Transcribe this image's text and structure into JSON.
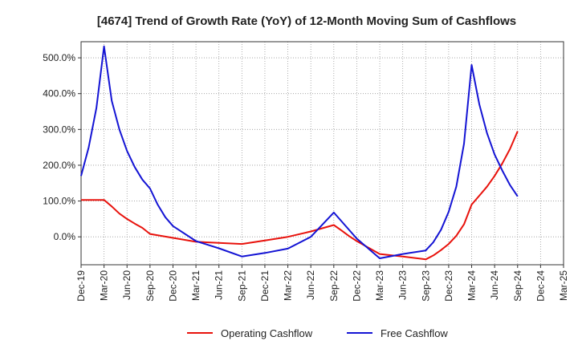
{
  "chart_data": {
    "type": "line",
    "title": "[4674]  Trend of Growth Rate (YoY) of 12-Month Moving Sum of Cashflows",
    "xlabel": "",
    "ylabel": "",
    "x_tick_labels": [
      "Dec-19",
      "Mar-20",
      "Jun-20",
      "Sep-20",
      "Dec-20",
      "Mar-21",
      "Jun-21",
      "Sep-21",
      "Dec-21",
      "Mar-22",
      "Jun-22",
      "Sep-22",
      "Dec-22",
      "Mar-23",
      "Jun-23",
      "Sep-23",
      "Dec-23",
      "Mar-24",
      "Jun-24",
      "Sep-24",
      "Dec-24",
      "Mar-25"
    ],
    "y_ticks": [
      0,
      100,
      200,
      300,
      400,
      500
    ],
    "y_tick_labels": [
      "0.0%",
      "100.0%",
      "200.0%",
      "300.0%",
      "400.0%",
      "500.0%"
    ],
    "ylim": [
      -78,
      545
    ],
    "grid": true,
    "legend_position": "bottom-center",
    "colors": {
      "Operating Cashflow": "#e8120c",
      "Free Cashflow": "#1414d4"
    },
    "series": [
      {
        "name": "Operating Cashflow",
        "points": [
          [
            "Dec-19",
            103
          ],
          [
            "Jan-20",
            103
          ],
          [
            "Feb-20",
            103
          ],
          [
            "Mar-20",
            103
          ],
          [
            "Apr-20",
            85
          ],
          [
            "May-20",
            65
          ],
          [
            "Jun-20",
            50
          ],
          [
            "Jul-20",
            37
          ],
          [
            "Aug-20",
            25
          ],
          [
            "Sep-20",
            8
          ],
          [
            "Dec-20",
            -3
          ],
          [
            "Mar-21",
            -14
          ],
          [
            "Jun-21",
            -17
          ],
          [
            "Sep-21",
            -20
          ],
          [
            "Dec-21",
            -10
          ],
          [
            "Mar-22",
            0
          ],
          [
            "Jun-22",
            15
          ],
          [
            "Sep-22",
            33
          ],
          [
            "Oct-22",
            18
          ],
          [
            "Nov-22",
            2
          ],
          [
            "Dec-22",
            -12
          ],
          [
            "Mar-23",
            -48
          ],
          [
            "Jun-23",
            -55
          ],
          [
            "Sep-23",
            -63
          ],
          [
            "Oct-23",
            -52
          ],
          [
            "Nov-23",
            -37
          ],
          [
            "Dec-23",
            -20
          ],
          [
            "Jan-24",
            3
          ],
          [
            "Feb-24",
            35
          ],
          [
            "Mar-24",
            90
          ],
          [
            "Apr-24",
            115
          ],
          [
            "May-24",
            140
          ],
          [
            "Jun-24",
            170
          ],
          [
            "Jul-24",
            205
          ],
          [
            "Aug-24",
            245
          ],
          [
            "Sep-24",
            295
          ]
        ]
      },
      {
        "name": "Free Cashflow",
        "points": [
          [
            "Dec-19",
            170
          ],
          [
            "Jan-20",
            250
          ],
          [
            "Feb-20",
            360
          ],
          [
            "Mar-20",
            532
          ],
          [
            "Apr-20",
            380
          ],
          [
            "May-20",
            300
          ],
          [
            "Jun-20",
            240
          ],
          [
            "Jul-20",
            195
          ],
          [
            "Aug-20",
            160
          ],
          [
            "Sep-20",
            135
          ],
          [
            "Oct-20",
            90
          ],
          [
            "Nov-20",
            55
          ],
          [
            "Dec-20",
            30
          ],
          [
            "Mar-21",
            -12
          ],
          [
            "Jun-21",
            -32
          ],
          [
            "Sep-21",
            -55
          ],
          [
            "Dec-21",
            -45
          ],
          [
            "Mar-22",
            -33
          ],
          [
            "Jun-22",
            0
          ],
          [
            "Sep-22",
            68
          ],
          [
            "Dec-22",
            -5
          ],
          [
            "Mar-23",
            -60
          ],
          [
            "Jun-23",
            -48
          ],
          [
            "Sep-23",
            -38
          ],
          [
            "Oct-23",
            -15
          ],
          [
            "Nov-23",
            20
          ],
          [
            "Dec-23",
            70
          ],
          [
            "Jan-24",
            140
          ],
          [
            "Feb-24",
            260
          ],
          [
            "Mar-24",
            480
          ],
          [
            "Apr-24",
            370
          ],
          [
            "May-24",
            290
          ],
          [
            "Jun-24",
            230
          ],
          [
            "Jul-24",
            185
          ],
          [
            "Aug-24",
            145
          ],
          [
            "Sep-24",
            113
          ]
        ]
      }
    ]
  }
}
